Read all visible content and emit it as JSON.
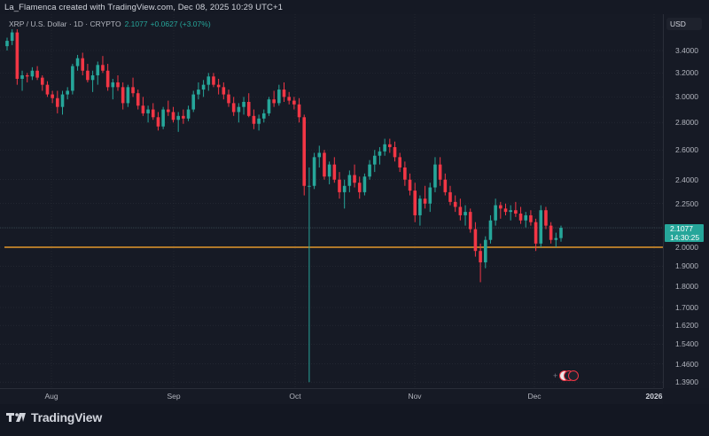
{
  "header": {
    "text": "La_Flamenca created with TradingView.com, Dec 08, 2025 10:29 UTC+1"
  },
  "legend": {
    "symbol": "XRP / U.S. Dollar · 1D · CRYPTO",
    "price": "2.1077",
    "change": "+0.0627 (+3.07%)"
  },
  "price_axis": {
    "currency": "USD",
    "labels": [
      "3.4000",
      "3.2000",
      "3.0000",
      "2.8000",
      "2.6000",
      "2.4000",
      "2.2500",
      "2.0000",
      "1.9000",
      "1.8000",
      "1.7000",
      "1.6200",
      "1.5400",
      "1.4600",
      "1.3900"
    ],
    "current_price": "2.1077",
    "countdown": "14:30:25"
  },
  "time_axis": {
    "labels": [
      "Aug",
      "Sep",
      "Oct",
      "Nov",
      "Dec",
      "2026"
    ]
  },
  "branding": {
    "logo_text": "TradingView"
  },
  "colors": {
    "up": "#26a69a",
    "down": "#f23645",
    "background": "#161a25",
    "horizontal_line": "#b0782a",
    "grid": "#2a2e39"
  },
  "chart_data": {
    "type": "candlestick",
    "title": "XRP / U.S. Dollar · 1D · CRYPTO",
    "xlabel": "",
    "ylabel": "USD",
    "y_scale": "log",
    "ylim": [
      1.37,
      3.62
    ],
    "x_ticks": [
      "Aug",
      "Sep",
      "Oct",
      "Nov",
      "Dec",
      "2026"
    ],
    "y_ticks": [
      3.4,
      3.2,
      3.0,
      2.8,
      2.6,
      2.4,
      2.25,
      2.0,
      1.9,
      1.8,
      1.7,
      1.62,
      1.54,
      1.46,
      1.39
    ],
    "horizontal_line": {
      "price": 2.0,
      "color": "#b0782a"
    },
    "last": {
      "price": 2.1077,
      "change": 0.0627,
      "change_pct": 3.07
    },
    "candles": [
      [
        3.44,
        3.52,
        3.4,
        3.49
      ],
      [
        3.49,
        3.6,
        3.45,
        3.57
      ],
      [
        3.57,
        3.6,
        3.1,
        3.15
      ],
      [
        3.15,
        3.22,
        3.05,
        3.18
      ],
      [
        3.18,
        3.2,
        3.12,
        3.17
      ],
      [
        3.17,
        3.25,
        3.14,
        3.22
      ],
      [
        3.22,
        3.26,
        3.14,
        3.16
      ],
      [
        3.16,
        3.18,
        3.05,
        3.1
      ],
      [
        3.1,
        3.13,
        3.0,
        3.02
      ],
      [
        3.02,
        3.05,
        2.95,
        2.99
      ],
      [
        2.99,
        3.05,
        2.87,
        2.92
      ],
      [
        2.92,
        3.05,
        2.86,
        3.02
      ],
      [
        3.02,
        3.08,
        2.98,
        3.05
      ],
      [
        3.05,
        3.28,
        3.02,
        3.26
      ],
      [
        3.26,
        3.36,
        3.22,
        3.33
      ],
      [
        3.33,
        3.38,
        3.18,
        3.22
      ],
      [
        3.22,
        3.28,
        3.12,
        3.14
      ],
      [
        3.14,
        3.22,
        3.04,
        3.18
      ],
      [
        3.18,
        3.3,
        3.1,
        3.27
      ],
      [
        3.27,
        3.35,
        3.2,
        3.22
      ],
      [
        3.22,
        3.28,
        3.05,
        3.08
      ],
      [
        3.08,
        3.15,
        2.98,
        3.12
      ],
      [
        3.12,
        3.18,
        3.05,
        3.08
      ],
      [
        3.08,
        3.12,
        2.9,
        2.95
      ],
      [
        2.95,
        3.1,
        2.92,
        3.08
      ],
      [
        3.08,
        3.16,
        3.0,
        3.03
      ],
      [
        3.03,
        3.06,
        2.9,
        2.93
      ],
      [
        2.93,
        3.0,
        2.85,
        2.87
      ],
      [
        2.87,
        2.93,
        2.8,
        2.9
      ],
      [
        2.9,
        2.95,
        2.82,
        2.84
      ],
      [
        2.84,
        2.88,
        2.74,
        2.77
      ],
      [
        2.77,
        2.92,
        2.75,
        2.9
      ],
      [
        2.9,
        2.97,
        2.85,
        2.88
      ],
      [
        2.88,
        2.92,
        2.8,
        2.82
      ],
      [
        2.82,
        2.88,
        2.73,
        2.85
      ],
      [
        2.85,
        2.9,
        2.79,
        2.83
      ],
      [
        2.83,
        2.93,
        2.81,
        2.9
      ],
      [
        2.9,
        3.05,
        2.88,
        3.02
      ],
      [
        3.02,
        3.12,
        2.98,
        3.06
      ],
      [
        3.06,
        3.14,
        3.0,
        3.1
      ],
      [
        3.1,
        3.2,
        3.05,
        3.17
      ],
      [
        3.17,
        3.2,
        3.08,
        3.1
      ],
      [
        3.1,
        3.15,
        3.02,
        3.08
      ],
      [
        3.08,
        3.12,
        2.98,
        3.02
      ],
      [
        3.02,
        3.06,
        2.92,
        2.95
      ],
      [
        2.95,
        3.0,
        2.85,
        2.88
      ],
      [
        2.88,
        2.95,
        2.8,
        2.92
      ],
      [
        2.92,
        3.0,
        2.86,
        2.96
      ],
      [
        2.96,
        3.03,
        2.84,
        2.85
      ],
      [
        2.85,
        2.9,
        2.75,
        2.79
      ],
      [
        2.79,
        2.86,
        2.74,
        2.83
      ],
      [
        2.83,
        2.9,
        2.8,
        2.87
      ],
      [
        2.87,
        3.0,
        2.85,
        2.98
      ],
      [
        2.98,
        3.05,
        2.92,
        2.95
      ],
      [
        2.95,
        3.1,
        2.93,
        3.06
      ],
      [
        3.06,
        3.12,
        2.96,
        3.0
      ],
      [
        3.0,
        3.04,
        2.94,
        2.97
      ],
      [
        2.97,
        3.0,
        2.9,
        2.94
      ],
      [
        2.94,
        2.99,
        2.8,
        2.84
      ],
      [
        2.84,
        2.86,
        2.3,
        2.36
      ],
      [
        2.36,
        2.48,
        1.39,
        2.36
      ],
      [
        2.36,
        2.58,
        2.34,
        2.55
      ],
      [
        2.55,
        2.63,
        2.48,
        2.58
      ],
      [
        2.58,
        2.6,
        2.4,
        2.42
      ],
      [
        2.42,
        2.52,
        2.37,
        2.5
      ],
      [
        2.5,
        2.55,
        2.38,
        2.4
      ],
      [
        2.4,
        2.45,
        2.28,
        2.32
      ],
      [
        2.32,
        2.4,
        2.22,
        2.36
      ],
      [
        2.36,
        2.46,
        2.32,
        2.43
      ],
      [
        2.43,
        2.5,
        2.35,
        2.38
      ],
      [
        2.38,
        2.42,
        2.28,
        2.32
      ],
      [
        2.32,
        2.44,
        2.3,
        2.42
      ],
      [
        2.42,
        2.53,
        2.4,
        2.5
      ],
      [
        2.5,
        2.6,
        2.45,
        2.56
      ],
      [
        2.56,
        2.62,
        2.5,
        2.59
      ],
      [
        2.59,
        2.68,
        2.56,
        2.64
      ],
      [
        2.64,
        2.68,
        2.58,
        2.62
      ],
      [
        2.62,
        2.66,
        2.52,
        2.55
      ],
      [
        2.55,
        2.58,
        2.45,
        2.48
      ],
      [
        2.48,
        2.52,
        2.36,
        2.4
      ],
      [
        2.4,
        2.44,
        2.3,
        2.33
      ],
      [
        2.33,
        2.38,
        2.14,
        2.18
      ],
      [
        2.18,
        2.3,
        2.12,
        2.28
      ],
      [
        2.28,
        2.36,
        2.22,
        2.25
      ],
      [
        2.25,
        2.38,
        2.2,
        2.35
      ],
      [
        2.35,
        2.55,
        2.32,
        2.5
      ],
      [
        2.5,
        2.55,
        2.36,
        2.4
      ],
      [
        2.4,
        2.44,
        2.3,
        2.32
      ],
      [
        2.32,
        2.36,
        2.24,
        2.26
      ],
      [
        2.26,
        2.3,
        2.2,
        2.23
      ],
      [
        2.23,
        2.28,
        2.15,
        2.18
      ],
      [
        2.18,
        2.24,
        2.12,
        2.2
      ],
      [
        2.2,
        2.22,
        2.08,
        2.1
      ],
      [
        2.1,
        2.14,
        1.95,
        1.98
      ],
      [
        1.98,
        2.02,
        1.82,
        1.92
      ],
      [
        1.92,
        2.06,
        1.89,
        2.04
      ],
      [
        2.04,
        2.18,
        2.02,
        2.15
      ],
      [
        2.15,
        2.28,
        2.12,
        2.24
      ],
      [
        2.24,
        2.26,
        2.16,
        2.22
      ],
      [
        2.22,
        2.25,
        2.18,
        2.2
      ],
      [
        2.2,
        2.24,
        2.15,
        2.21
      ],
      [
        2.21,
        2.26,
        2.17,
        2.19
      ],
      [
        2.19,
        2.23,
        2.13,
        2.15
      ],
      [
        2.15,
        2.2,
        2.11,
        2.18
      ],
      [
        2.18,
        2.21,
        2.12,
        2.14
      ],
      [
        2.14,
        2.16,
        1.98,
        2.02
      ],
      [
        2.02,
        2.24,
        2.0,
        2.21
      ],
      [
        2.21,
        2.23,
        2.1,
        2.12
      ],
      [
        2.12,
        2.14,
        2.02,
        2.04
      ],
      [
        2.04,
        2.08,
        2.0,
        2.05
      ],
      [
        2.05,
        2.12,
        2.03,
        2.1077
      ]
    ]
  }
}
